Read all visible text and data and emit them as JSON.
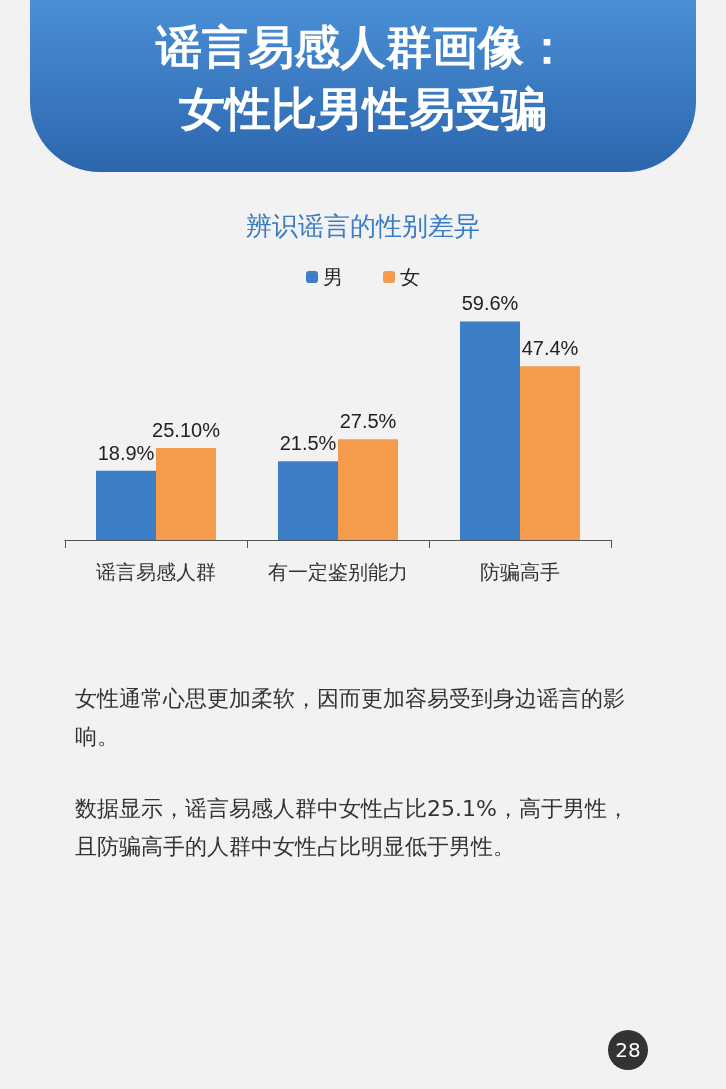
{
  "chart_data": {
    "type": "bar",
    "title": "谣言易感人群画像：女性比男性易受骗",
    "subtitle": "辨识谣言的性别差异",
    "categories": [
      "谣言易感人群",
      "有一定鉴别能力",
      "防骗高手"
    ],
    "series": [
      {
        "name": "男",
        "color": "#3d7fc6",
        "values": [
          18.9,
          21.5,
          59.6
        ],
        "value_labels": [
          "18.9%",
          "21.5%",
          "59.6%"
        ]
      },
      {
        "name": "女",
        "color": "#f59b4c",
        "values": [
          25.1,
          27.5,
          47.4
        ],
        "value_labels": [
          "25.10%",
          "27.5%",
          "47.4%"
        ]
      }
    ],
    "legend": "top",
    "tick_labels": "x",
    "annotations": [
      "女性通常心思更加柔软，因而更加容易受到身边谣言的影响。",
      "数据显示，谣言易感人群中女性占比25.1%，高于男性，且防骗高手的人群中女性占比明显低于男性。",
      "28"
    ]
  }
}
